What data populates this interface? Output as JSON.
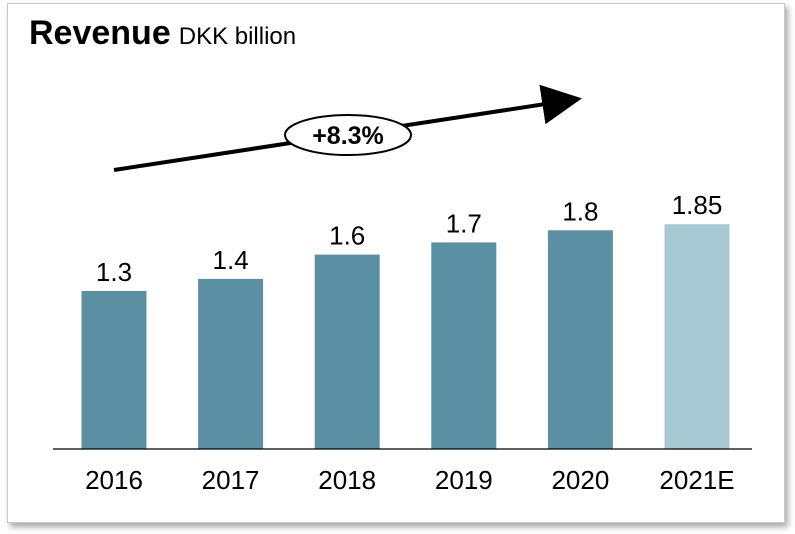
{
  "title": {
    "main": "Revenue",
    "unit": "DKK billion"
  },
  "chart_data": {
    "type": "bar",
    "categories": [
      "2016",
      "2017",
      "2018",
      "2019",
      "2020",
      "2021E"
    ],
    "values": [
      1.3,
      1.4,
      1.6,
      1.7,
      1.8,
      1.85
    ],
    "value_labels": [
      "1.3",
      "1.4",
      "1.6",
      "1.7",
      "1.8",
      "1.85"
    ],
    "estimate": [
      false,
      false,
      false,
      false,
      false,
      true
    ],
    "title": "Revenue",
    "ylabel": "DKK billion",
    "xlabel": "",
    "ylim": [
      0,
      3.3
    ],
    "grid": false,
    "colors": {
      "actual": "#5b8fa3",
      "estimate": "#a8c8d4"
    },
    "annotation": {
      "text": "+8.3%",
      "kind": "growth-arrow"
    }
  }
}
